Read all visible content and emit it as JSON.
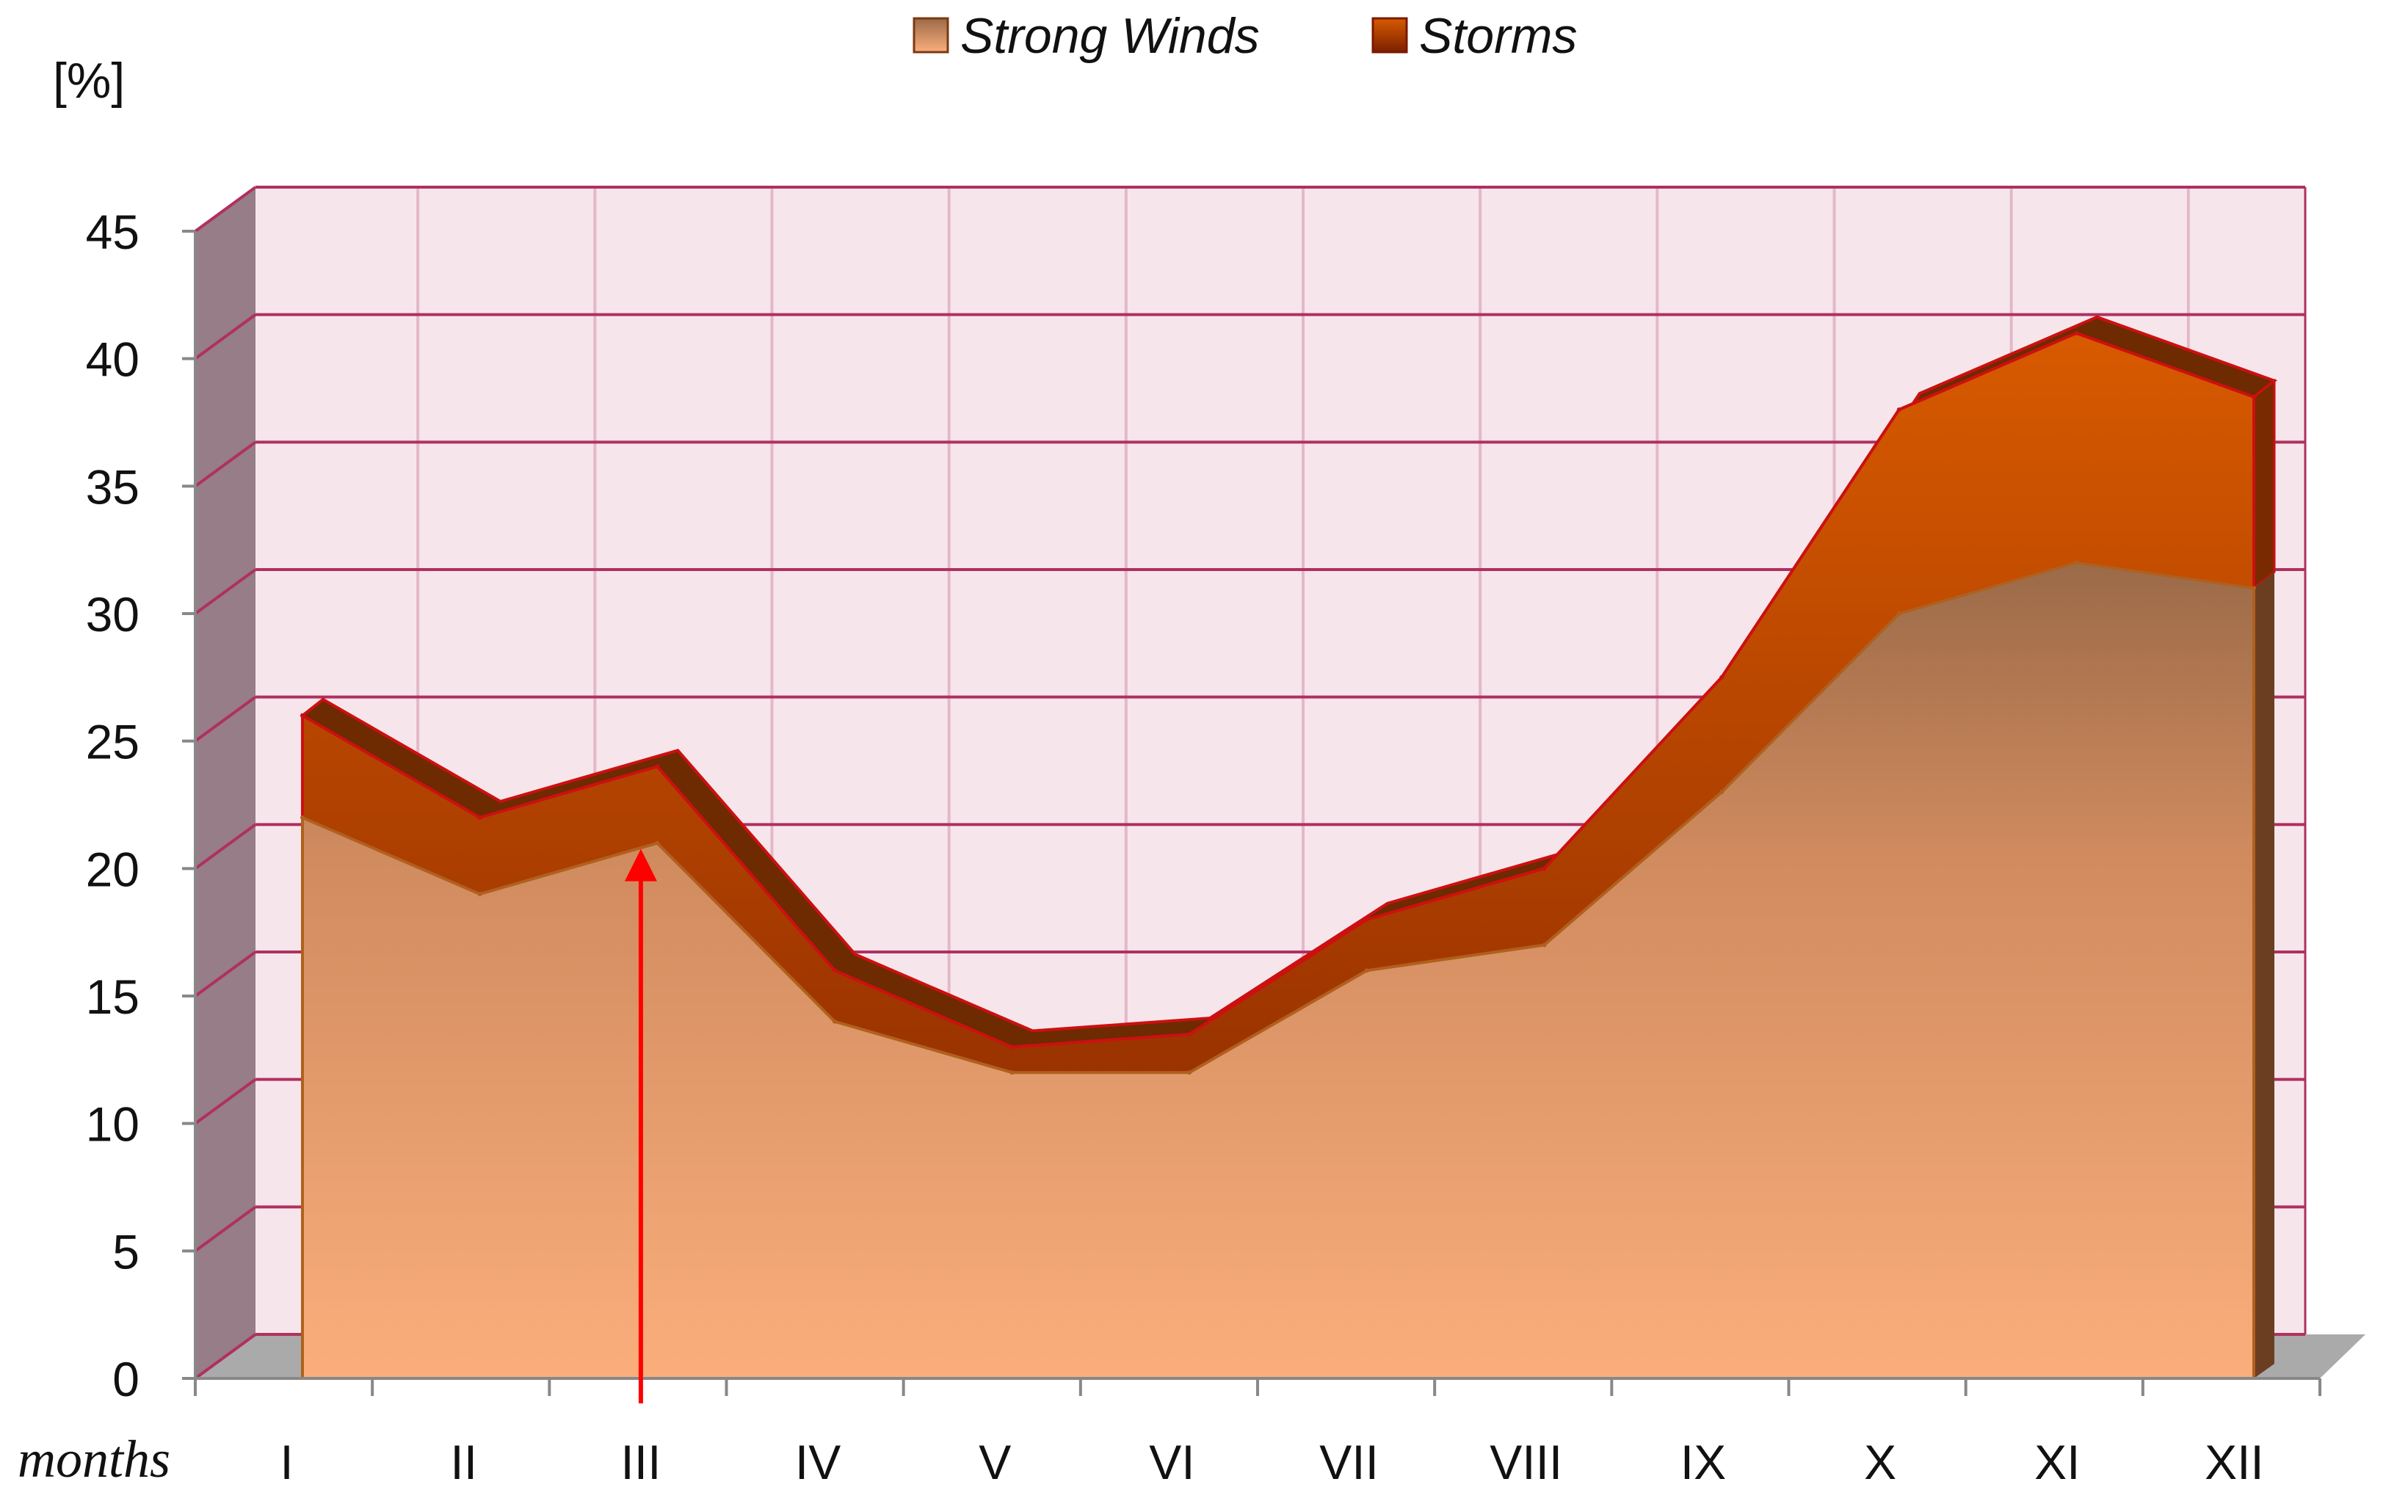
{
  "chart_data": {
    "type": "area",
    "stacked": true,
    "three_d": true,
    "categories": [
      "I",
      "II",
      "III",
      "IV",
      "V",
      "VI",
      "VII",
      "VIII",
      "IX",
      "X",
      "XI",
      "XII"
    ],
    "series": [
      {
        "name": "Strong Winds",
        "values": [
          22,
          19,
          21,
          14,
          12,
          12,
          16,
          17,
          23,
          30,
          32,
          31
        ],
        "color": "#d98a56"
      },
      {
        "name": "Storms",
        "values": [
          4,
          3,
          3,
          2,
          1,
          1.5,
          2,
          3,
          4.5,
          8,
          9,
          7.5
        ],
        "color": "#c85a00"
      }
    ],
    "yticks": [
      "0",
      "5",
      "10",
      "15",
      "20",
      "25",
      "30",
      "35",
      "40",
      "45"
    ],
    "ylim": [
      0,
      45
    ],
    "ylabel": "[%]",
    "xlabel": "months",
    "legend_position": "top",
    "grid": true,
    "plot_background": "#f6e6ec",
    "grid_color": "#b03060",
    "marker": {
      "category": "III",
      "color": "#ff0000"
    }
  }
}
